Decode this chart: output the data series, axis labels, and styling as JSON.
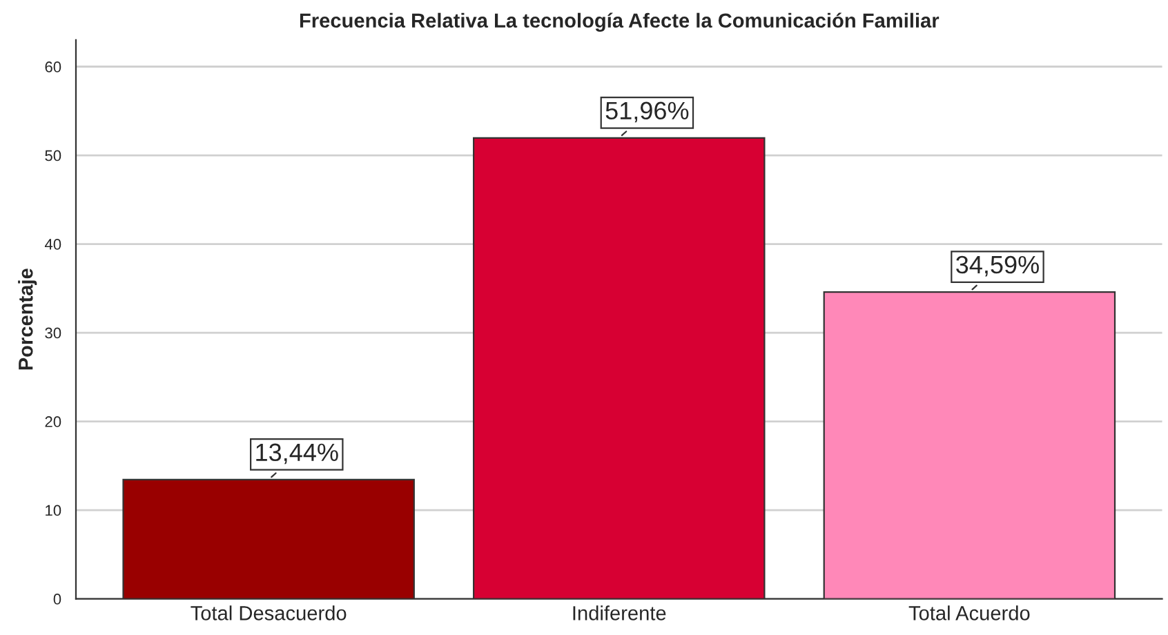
{
  "chart_data": {
    "type": "bar",
    "title": "Frecuencia Relativa La tecnología Afecte la Comunicación Familiar",
    "ylabel": "Porcentaje",
    "categories": [
      "Total Desacuerdo",
      "Indiferente",
      "Total Acuerdo"
    ],
    "values": [
      13.44,
      51.96,
      34.59
    ],
    "colors": [
      "#990000",
      "#d70033",
      "#ff88b8"
    ],
    "value_labels": [
      "13,44%",
      "51,96%",
      "34,59%"
    ],
    "ylim": [
      0,
      63
    ],
    "yticks": [
      0,
      10,
      20,
      30,
      40,
      50,
      60
    ],
    "grid": "y",
    "legend": false
  }
}
